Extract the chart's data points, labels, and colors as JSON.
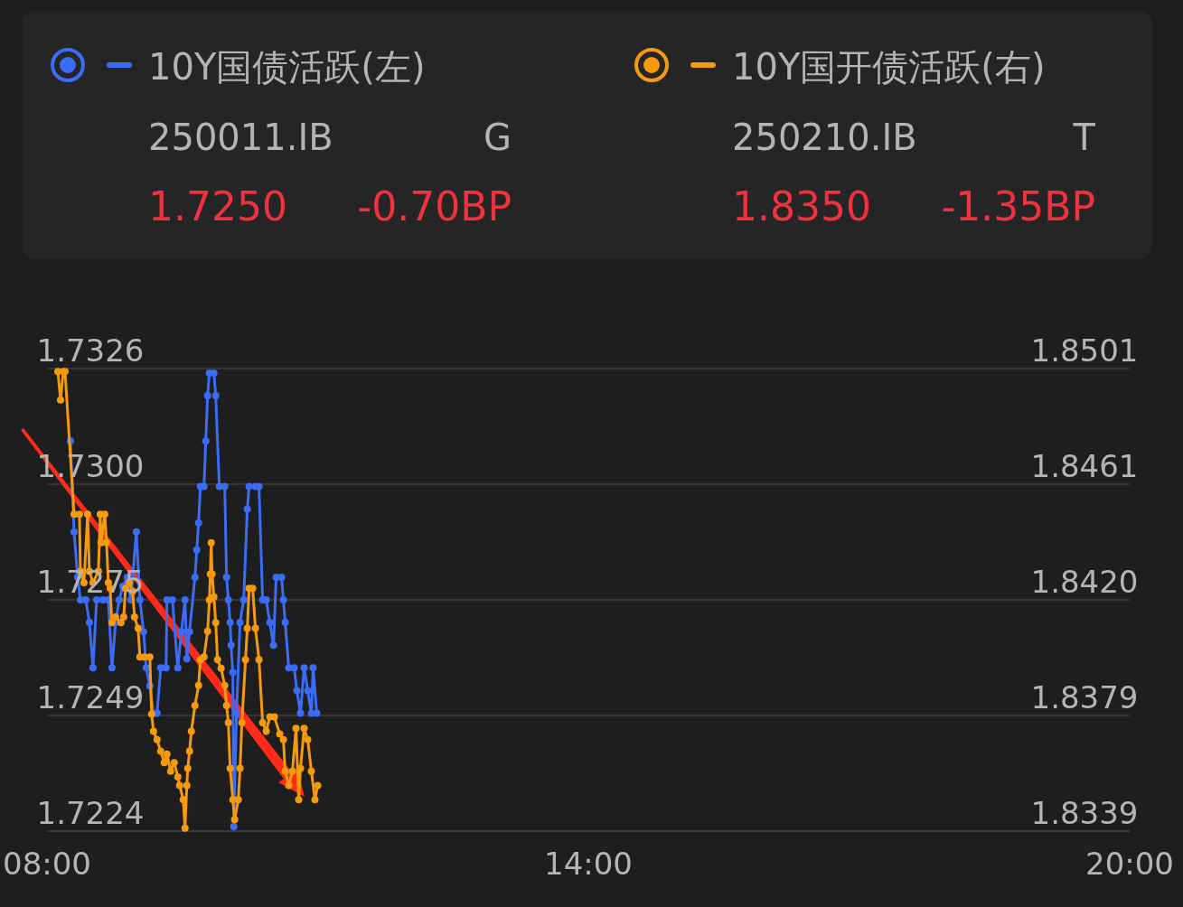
{
  "chart_data": {
    "type": "line",
    "xlim": [
      8,
      20
    ],
    "xticks": [
      {
        "value": 8,
        "label": "08:00"
      },
      {
        "value": 14,
        "label": "14:00"
      },
      {
        "value": 20,
        "label": "20:00"
      }
    ],
    "ylim": [
      1.7224,
      1.7326
    ],
    "yticks": [
      1.7224,
      {
        "value": 1.72495,
        "label": "1.7249"
      },
      1.7275,
      {
        "value": 1.73005,
        "label": "1.7300"
      },
      1.7326
    ],
    "y2lim": [
      1.8339,
      1.8501
    ],
    "y2ticks": [
      1.8339,
      {
        "value": 1.83795,
        "label": "1.8379"
      },
      {
        "value": 1.842,
        "label": "1.8420"
      },
      {
        "value": 1.84605,
        "label": "1.8461"
      },
      1.8501
    ],
    "grid": "y",
    "marker": "circle",
    "legend": "top",
    "annotations": [
      "250011.IB",
      "G",
      "1.7250",
      "-0.70BP",
      "250210.IB",
      "T",
      "1.8350",
      "-1.35BP"
    ],
    "series": [
      {
        "name": "10Y国债活跃(左)",
        "color": "#3b6cf6",
        "axis": "y",
        "x": [
          8.26,
          8.3,
          8.34,
          8.37,
          8.43,
          8.47,
          8.51,
          8.55,
          8.62,
          8.68,
          8.72,
          8.76,
          8.8,
          8.84,
          8.89,
          8.93,
          8.99,
          9.03,
          9.07,
          9.1,
          9.14,
          9.18,
          9.22,
          9.26,
          9.32,
          9.33,
          9.39,
          9.45,
          9.49,
          9.53,
          9.55,
          9.58,
          9.64,
          9.66,
          9.68,
          9.7,
          9.74,
          9.76,
          9.78,
          9.8,
          9.85,
          9.87,
          9.91,
          9.97,
          9.99,
          10.01,
          10.03,
          10.04,
          10.06,
          10.07,
          10.1,
          10.14,
          10.18,
          10.22,
          10.24,
          10.31,
          10.35,
          10.39,
          10.43,
          10.47,
          10.51,
          10.54,
          10.6,
          10.62,
          10.64,
          10.68,
          10.74,
          10.77,
          10.81,
          10.85,
          10.89,
          10.93,
          10.95,
          10.99
        ],
        "values": [
          1.731,
          1.729,
          1.728,
          1.7275,
          1.7275,
          1.727,
          1.726,
          1.7275,
          1.7275,
          1.7275,
          1.726,
          1.727,
          1.7275,
          1.7278,
          1.728,
          1.7275,
          1.729,
          1.7275,
          1.7268,
          1.726,
          1.7256,
          1.725,
          1.725,
          1.726,
          1.726,
          1.7275,
          1.7275,
          1.726,
          1.7268,
          1.7275,
          1.7262,
          1.7268,
          1.728,
          1.7286,
          1.7292,
          1.73,
          1.73,
          1.731,
          1.732,
          1.7325,
          1.7325,
          1.732,
          1.73,
          1.73,
          1.728,
          1.7275,
          1.727,
          1.7265,
          1.7259,
          1.7225,
          1.725,
          1.727,
          1.7275,
          1.7295,
          1.73,
          1.73,
          1.73,
          1.7275,
          1.7275,
          1.727,
          1.7265,
          1.728,
          1.728,
          1.7275,
          1.727,
          1.726,
          1.726,
          1.7255,
          1.725,
          1.726,
          1.7255,
          1.725,
          1.726,
          1.725
        ]
      },
      {
        "name": "10Y国开债活跃(右)",
        "color": "#f59a0c",
        "axis": "y2",
        "x": [
          8.12,
          8.15,
          8.18,
          8.2,
          8.3,
          8.36,
          8.37,
          8.41,
          8.45,
          8.47,
          8.51,
          8.57,
          8.59,
          8.6,
          8.64,
          8.66,
          8.68,
          8.7,
          8.72,
          8.76,
          8.82,
          8.85,
          8.87,
          8.91,
          8.95,
          8.97,
          9.01,
          9.03,
          9.08,
          9.14,
          9.16,
          9.18,
          9.22,
          9.26,
          9.3,
          9.33,
          9.37,
          9.41,
          9.45,
          9.47,
          9.51,
          9.53,
          9.55,
          9.56,
          9.58,
          9.6,
          9.64,
          9.68,
          9.7,
          9.74,
          9.78,
          9.8,
          9.81,
          9.82,
          9.83,
          9.85,
          9.87,
          9.89,
          9.93,
          9.97,
          9.99,
          10.01,
          10.03,
          10.06,
          10.08,
          10.12,
          10.14,
          10.16,
          10.2,
          10.22,
          10.24,
          10.28,
          10.31,
          10.35,
          10.39,
          10.43,
          10.47,
          10.52,
          10.58,
          10.62,
          10.64,
          10.68,
          10.72,
          10.76,
          10.79,
          10.81,
          10.85,
          10.89,
          10.93,
          10.97,
          11.0
        ],
        "values": [
          1.85,
          1.849,
          1.85,
          1.85,
          1.845,
          1.845,
          1.843,
          1.8426,
          1.845,
          1.843,
          1.8426,
          1.843,
          1.845,
          1.844,
          1.845,
          1.844,
          1.8426,
          1.8424,
          1.8412,
          1.8414,
          1.8412,
          1.8414,
          1.8424,
          1.8426,
          1.8423,
          1.8414,
          1.841,
          1.84,
          1.84,
          1.84,
          1.838,
          1.8374,
          1.8371,
          1.8367,
          1.8363,
          1.8366,
          1.836,
          1.8363,
          1.8358,
          1.8355,
          1.835,
          1.834,
          1.8355,
          1.8361,
          1.8367,
          1.8374,
          1.8383,
          1.839,
          1.8399,
          1.84,
          1.8409,
          1.842,
          1.8429,
          1.844,
          1.8429,
          1.8421,
          1.8412,
          1.8399,
          1.8396,
          1.839,
          1.8383,
          1.8377,
          1.8361,
          1.835,
          1.8343,
          1.835,
          1.8361,
          1.8377,
          1.8399,
          1.841,
          1.8424,
          1.8424,
          1.841,
          1.8399,
          1.8377,
          1.8374,
          1.8379,
          1.8379,
          1.8373,
          1.8371,
          1.836,
          1.8355,
          1.836,
          1.8375,
          1.835,
          1.8361,
          1.8375,
          1.8371,
          1.836,
          1.835,
          1.8355
        ]
      }
    ]
  }
}
